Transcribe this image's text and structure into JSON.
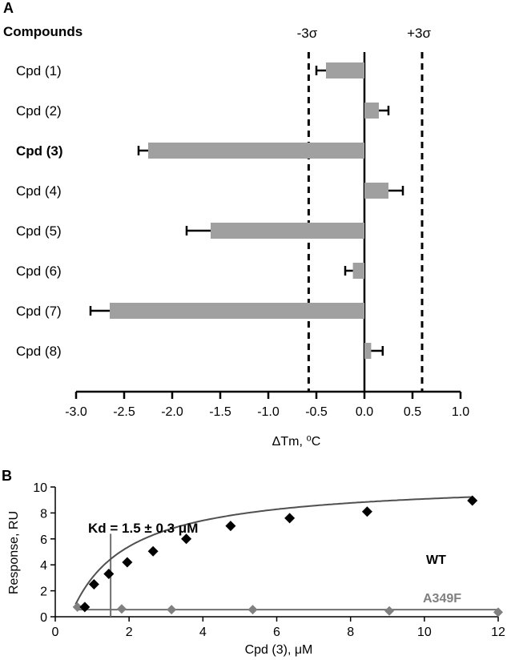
{
  "chart_data": [
    {
      "panel_label": "A",
      "type": "bar",
      "orientation": "horizontal",
      "category_header": "Compounds",
      "categories": [
        "Cpd (1)",
        "Cpd (2)",
        "Cpd (3)",
        "Cpd (4)",
        "Cpd (5)",
        "Cpd (6)",
        "Cpd (7)",
        "Cpd (8)"
      ],
      "highlighted_category": "Cpd (3)",
      "values": [
        -0.4,
        0.15,
        -2.25,
        0.25,
        -1.6,
        -0.12,
        -2.65,
        0.07
      ],
      "errors": [
        0.1,
        0.1,
        0.1,
        0.15,
        0.25,
        0.08,
        0.2,
        0.12
      ],
      "xlabel": "ΔTm, ⁰C",
      "xlim": [
        -3.0,
        1.0
      ],
      "xticks": [
        -3.0,
        -2.5,
        -2.0,
        -1.5,
        -1.0,
        -0.5,
        0.0,
        0.5,
        1.0
      ],
      "xtick_labels": [
        "-3.0",
        "-2.5",
        "-2.0",
        "-1.5",
        "-1.0",
        "-0.5",
        "0.0",
        "0.5",
        "1.0"
      ],
      "reference_lines": [
        {
          "label": "-3σ",
          "value": -0.58
        },
        {
          "label": "+3σ",
          "value": 0.6
        }
      ],
      "zero_line": 0,
      "bar_color": "#a0a0a0"
    },
    {
      "panel_label": "B",
      "type": "scatter",
      "xlabel": "Cpd (3), μM",
      "ylabel": "Response, RU",
      "xlim": [
        0,
        12
      ],
      "ylim": [
        0,
        10
      ],
      "xticks": [
        0,
        2,
        4,
        6,
        8,
        10,
        12
      ],
      "yticks": [
        0,
        2,
        4,
        6,
        8,
        10
      ],
      "annotation": "Kd = 1.5 ± 0.3 μM",
      "kd_marker_x": 1.5,
      "series": [
        {
          "name": "WT",
          "color": "#000000",
          "x": [
            0.8,
            1.05,
            1.45,
            1.95,
            2.65,
            3.55,
            4.75,
            6.35,
            8.45,
            11.3
          ],
          "y": [
            0.75,
            2.5,
            3.3,
            4.2,
            5.05,
            6.0,
            7.0,
            7.6,
            8.1,
            8.95
          ],
          "fit": {
            "model": "one-site binding",
            "Rmax": 10.5,
            "Kd": 1.5,
            "onset": 0.55
          }
        },
        {
          "name": "A349F",
          "color": "#808080",
          "x": [
            0.6,
            1.8,
            3.15,
            5.35,
            9.05,
            12.0
          ],
          "y": [
            0.75,
            0.6,
            0.55,
            0.55,
            0.45,
            0.35
          ],
          "fit_level": 0.55
        }
      ]
    }
  ]
}
